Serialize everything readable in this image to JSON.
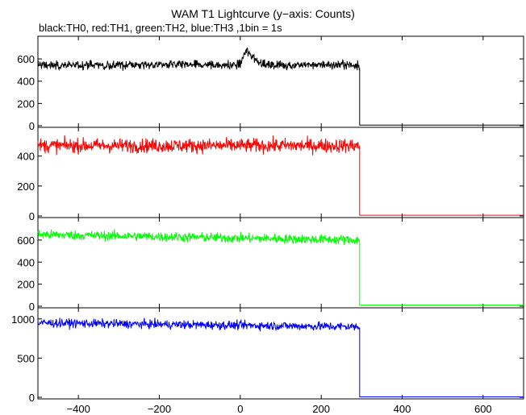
{
  "chart_data": {
    "type": "line",
    "title": "WAM T1 Lightcurve (y−axis: Counts)",
    "subtitle": "black:TH0, red:TH1, green:TH2, blue:TH3 ,1bin = 1s",
    "xlabel": "",
    "ylabel": "",
    "xlim": [
      -500,
      700
    ],
    "x_ticks": [
      -400,
      -200,
      0,
      200,
      400,
      600
    ],
    "x_tick_labels": [
      "−400",
      "−200",
      "0",
      "200",
      "400",
      "600"
    ],
    "grid": false,
    "cutoff_x": 295,
    "panels": [
      {
        "name": "TH0",
        "color": "#000000",
        "ylim": [
          0,
          760
        ],
        "y_ticks": [
          0,
          200,
          400,
          600
        ],
        "y_tick_labels": [
          "0",
          "200",
          "400",
          "600"
        ],
        "level_before": 545,
        "level_after": 5,
        "noise": 20,
        "features": [
          {
            "x": 14,
            "peak": 660,
            "width": 9
          },
          {
            "x": 28,
            "peak": 620,
            "width": 9
          },
          {
            "x": 45,
            "peak": 580,
            "width": 12
          }
        ]
      },
      {
        "name": "TH1",
        "color": "#ff0000",
        "ylim": [
          0,
          560
        ],
        "y_ticks": [
          0,
          200,
          400
        ],
        "y_tick_labels": [
          "0",
          "200",
          "400"
        ],
        "level_before": 470,
        "level_after": 5,
        "noise": 24,
        "features": []
      },
      {
        "name": "TH2",
        "color": "#00ff00",
        "ylim": [
          0,
          760
        ],
        "y_ticks": [
          0,
          200,
          400,
          600
        ],
        "y_tick_labels": [
          "0",
          "200",
          "400",
          "600"
        ],
        "level_before": 650,
        "level_after": 10,
        "level_end": 600,
        "noise": 22,
        "features": []
      },
      {
        "name": "TH3",
        "color": "#0000ff",
        "ylim": [
          0,
          1080
        ],
        "y_ticks": [
          0,
          500,
          1000
        ],
        "y_tick_labels": [
          "0",
          "500",
          "1000"
        ],
        "level_before": 950,
        "level_after": 5,
        "level_end": 900,
        "noise": 28,
        "features": []
      }
    ]
  }
}
